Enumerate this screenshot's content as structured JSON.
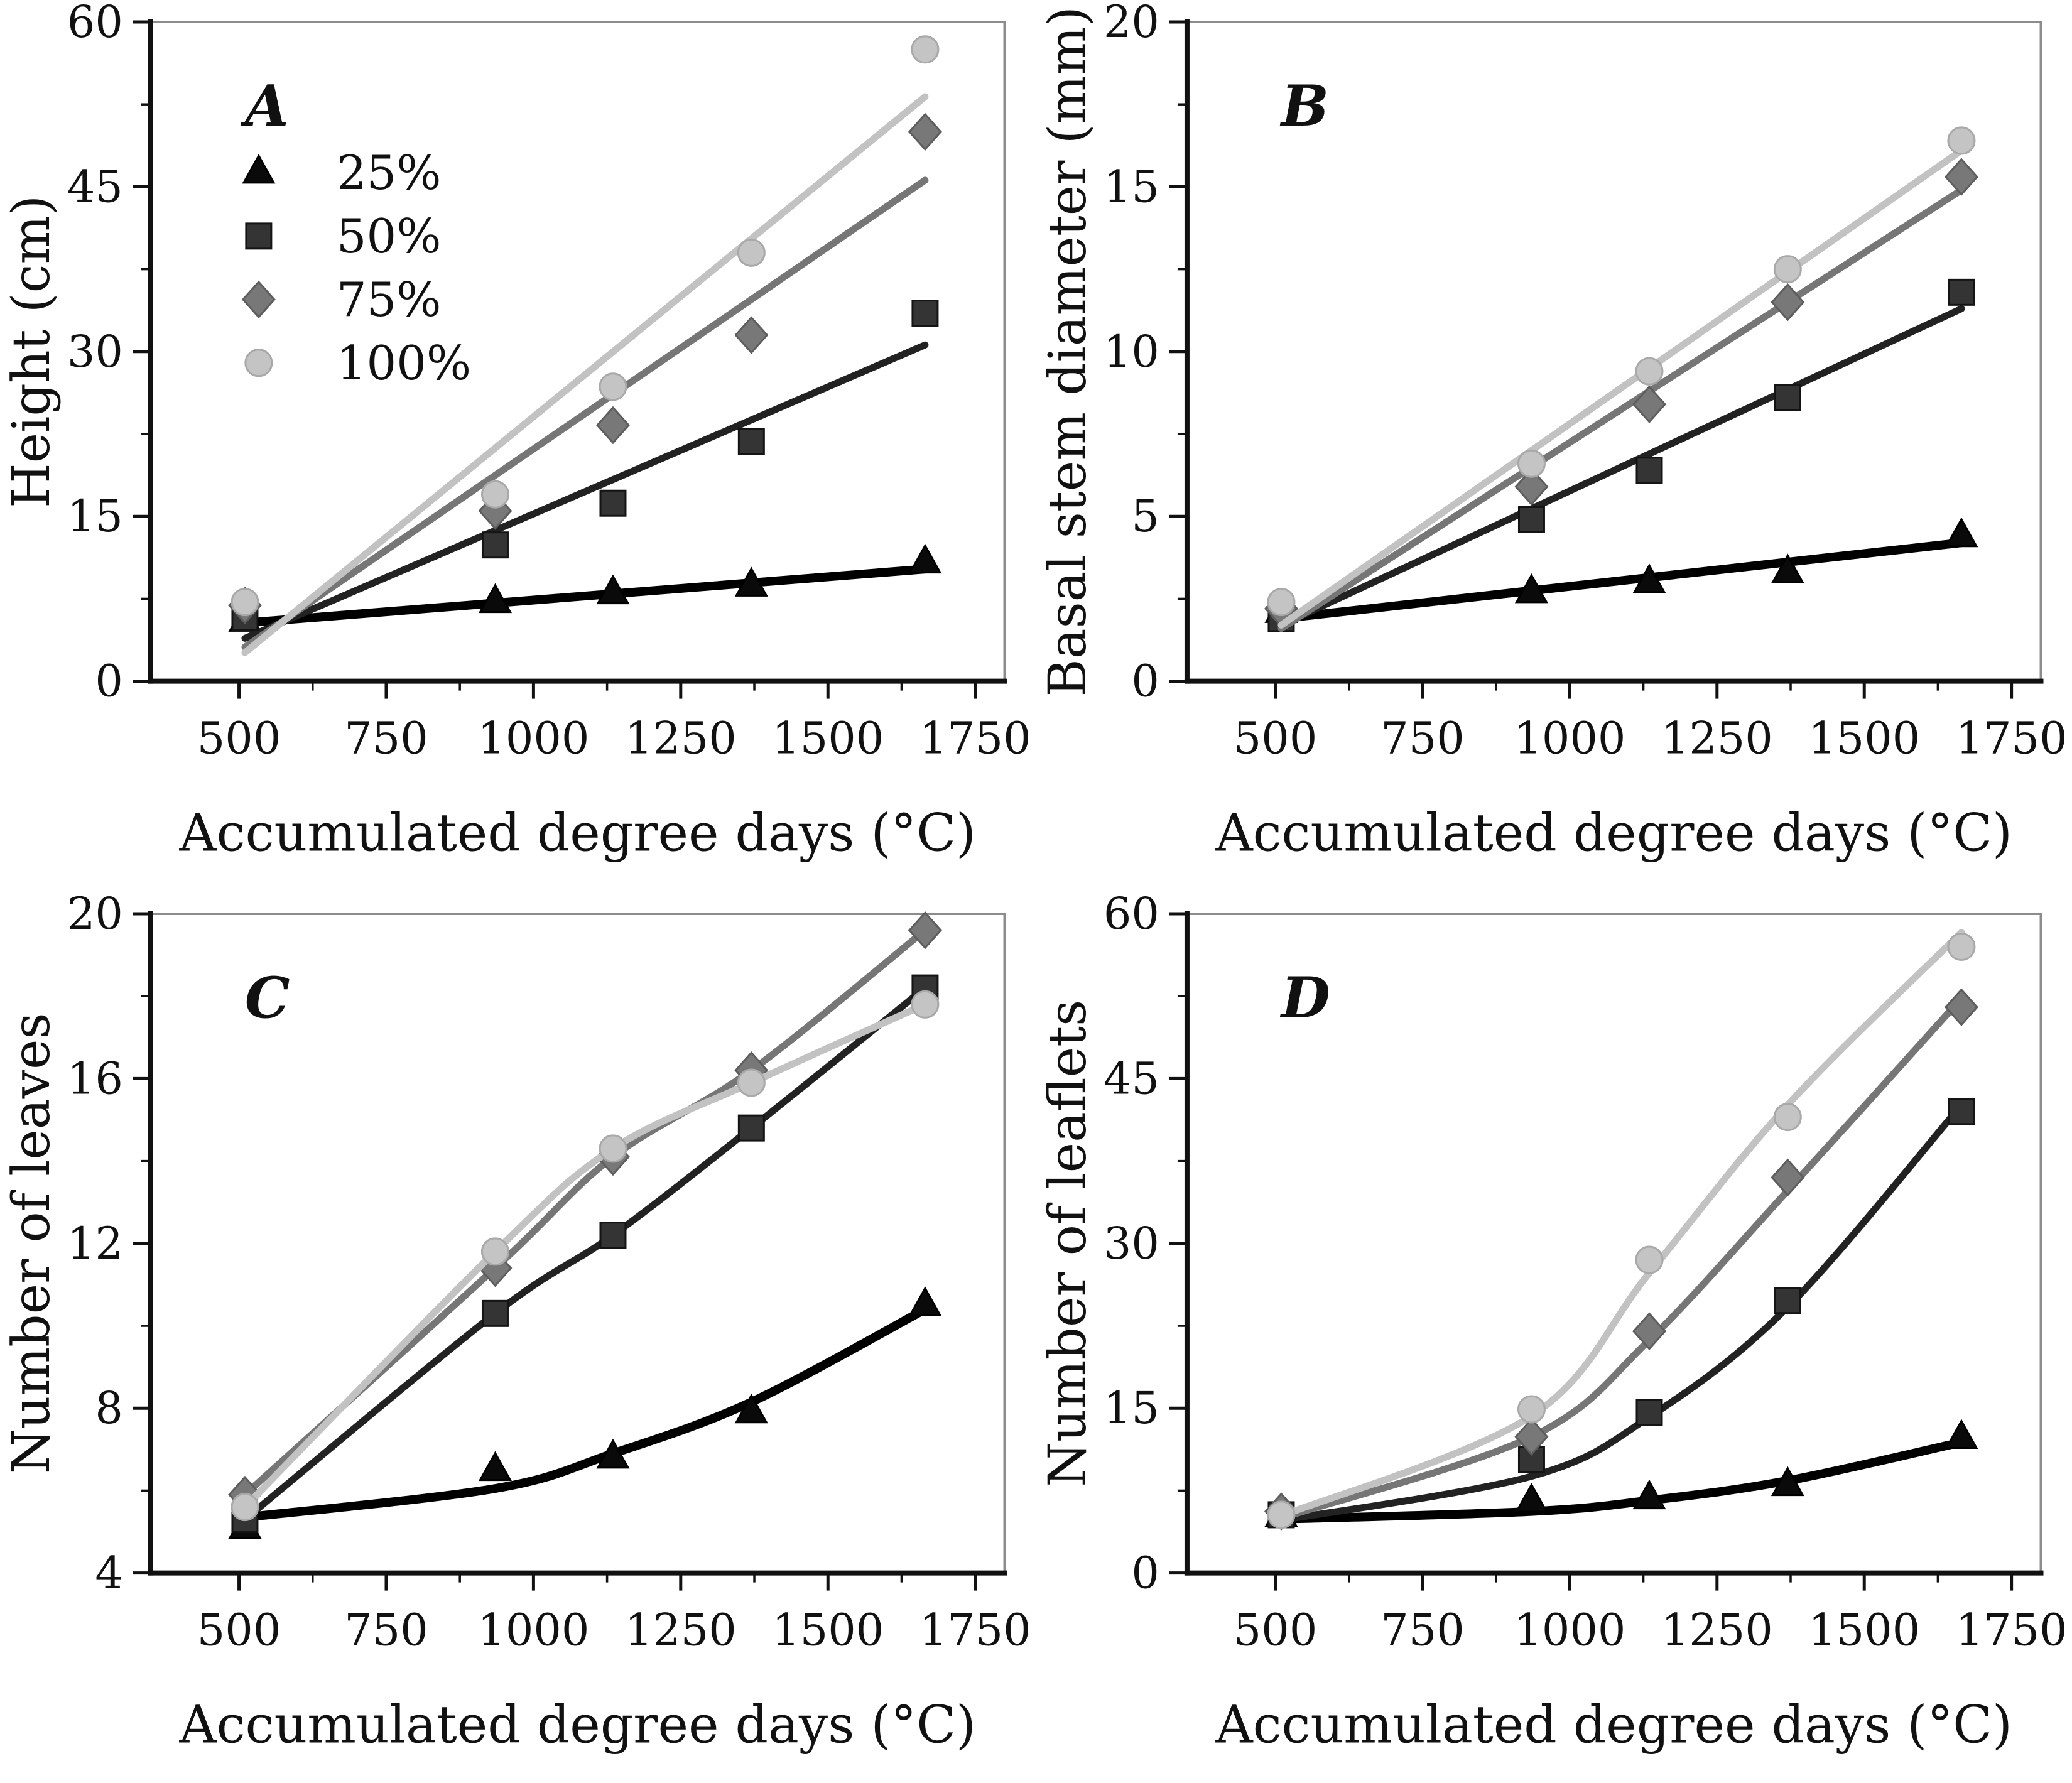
{
  "figure": {
    "description": "Four-panel plant growth figure versus accumulated degree days",
    "xlabel": "Accumulated degree days (°C)",
    "xlim": [
      350,
      1800
    ],
    "xticks": [
      500,
      750,
      1000,
      1250,
      1500,
      1750
    ],
    "x_minor_ticks": [
      625,
      875,
      1125,
      1375,
      1625
    ],
    "frame_color": "#8c8c8c",
    "axis_color": "#111111",
    "text_color": "#111111",
    "legend": {
      "items": [
        {
          "label": "25%",
          "marker": "triangle-icon",
          "color": "#000000"
        },
        {
          "label": "50%",
          "marker": "square-icon",
          "color": "#343434"
        },
        {
          "label": "75%",
          "marker": "diamond-icon",
          "color": "#767676"
        },
        {
          "label": "100%",
          "marker": "circle-icon",
          "color": "#c2c2c2"
        }
      ],
      "location": "upper-left of panel A"
    }
  },
  "chart_data": [
    {
      "type": "scatter",
      "panel_letter": "A",
      "ylabel": "Height (cm)",
      "xlabel": "Accumulated degree days (°C)",
      "ylim": [
        0,
        60
      ],
      "yticks": [
        0,
        15,
        30,
        45,
        60
      ],
      "y_minor_ticks": [
        7.5,
        22.5,
        37.5,
        52.5
      ],
      "has_legend": true,
      "series": [
        {
          "name": "25%",
          "marker": "triangle",
          "color": "#000000",
          "fill": "#0a0a0a",
          "edge": "#000000",
          "line_width": 14,
          "x": [
            510,
            935,
            1135,
            1370,
            1665
          ],
          "y": [
            5.5,
            7.2,
            8.0,
            8.7,
            10.8
          ],
          "fit": {
            "kind": "line",
            "points": [
              [
                510,
                5.3
              ],
              [
                1665,
                10.2
              ]
            ]
          }
        },
        {
          "name": "50%",
          "marker": "square",
          "color": "#222222",
          "fill": "#343434",
          "edge": "#141414",
          "line_width": 11,
          "x": [
            510,
            935,
            1135,
            1370,
            1665
          ],
          "y": [
            5.8,
            12.4,
            16.2,
            21.8,
            33.5
          ],
          "fit": {
            "kind": "line",
            "points": [
              [
                510,
                3.9
              ],
              [
                1665,
                30.6
              ]
            ]
          }
        },
        {
          "name": "75%",
          "marker": "diamond",
          "color": "#767676",
          "fill": "#787878",
          "edge": "#5d5d5d",
          "line_width": 11,
          "x": [
            510,
            935,
            1135,
            1370,
            1665
          ],
          "y": [
            6.9,
            15.5,
            23.3,
            31.5,
            50.0
          ],
          "fit": {
            "kind": "line",
            "points": [
              [
                510,
                3.1
              ],
              [
                1665,
                45.6
              ]
            ]
          }
        },
        {
          "name": "100%",
          "marker": "circle",
          "color": "#c2c2c2",
          "fill": "#c4c4c4",
          "edge": "#a9a9a9",
          "line_width": 11,
          "x": [
            510,
            935,
            1135,
            1370,
            1665
          ],
          "y": [
            7.2,
            17.0,
            26.8,
            39.0,
            57.5
          ],
          "fit": {
            "kind": "line",
            "points": [
              [
                510,
                2.6
              ],
              [
                1665,
                53.2
              ]
            ]
          }
        }
      ]
    },
    {
      "type": "scatter",
      "panel_letter": "B",
      "ylabel": "Basal stem diameter (mm)",
      "xlabel": "Accumulated degree days (°C)",
      "ylim": [
        0,
        20
      ],
      "yticks": [
        0,
        5,
        10,
        15,
        20
      ],
      "y_minor_ticks": [
        2.5,
        7.5,
        12.5,
        17.5
      ],
      "has_legend": false,
      "series": [
        {
          "name": "25%",
          "marker": "triangle",
          "color": "#000000",
          "fill": "#0a0a0a",
          "edge": "#000000",
          "line_width": 14,
          "x": [
            510,
            935,
            1135,
            1370,
            1665
          ],
          "y": [
            2.1,
            2.7,
            3.0,
            3.3,
            4.4
          ],
          "fit": {
            "kind": "line",
            "points": [
              [
                510,
                1.9
              ],
              [
                1665,
                4.2
              ]
            ]
          }
        },
        {
          "name": "50%",
          "marker": "square",
          "color": "#222222",
          "fill": "#343434",
          "edge": "#141414",
          "line_width": 11,
          "x": [
            510,
            935,
            1135,
            1370,
            1665
          ],
          "y": [
            1.9,
            4.9,
            6.4,
            8.6,
            11.8
          ],
          "fit": {
            "kind": "line",
            "points": [
              [
                510,
                1.7
              ],
              [
                1665,
                11.3
              ]
            ]
          }
        },
        {
          "name": "75%",
          "marker": "diamond",
          "color": "#767676",
          "fill": "#787878",
          "edge": "#5d5d5d",
          "line_width": 11,
          "x": [
            510,
            935,
            1135,
            1370,
            1665
          ],
          "y": [
            2.2,
            5.9,
            8.4,
            11.5,
            15.3
          ],
          "fit": {
            "kind": "line",
            "points": [
              [
                510,
                1.6
              ],
              [
                1665,
                14.9
              ]
            ]
          }
        },
        {
          "name": "100%",
          "marker": "circle",
          "color": "#c2c2c2",
          "fill": "#c4c4c4",
          "edge": "#a9a9a9",
          "line_width": 11,
          "x": [
            510,
            935,
            1135,
            1370,
            1665
          ],
          "y": [
            2.4,
            6.6,
            9.4,
            12.5,
            16.4
          ],
          "fit": {
            "kind": "line",
            "points": [
              [
                510,
                1.7
              ],
              [
                1665,
                16.1
              ]
            ]
          }
        }
      ]
    },
    {
      "type": "scatter",
      "panel_letter": "C",
      "ylabel": "Number of leaves",
      "xlabel": "Accumulated degree days (°C)",
      "ylim": [
        4,
        20
      ],
      "yticks": [
        4,
        8,
        12,
        16,
        20
      ],
      "y_minor_ticks": [
        6,
        10,
        14,
        18
      ],
      "has_legend": false,
      "series": [
        {
          "name": "25%",
          "marker": "triangle",
          "color": "#000000",
          "fill": "#0a0a0a",
          "edge": "#000000",
          "line_width": 14,
          "x": [
            510,
            935,
            1135,
            1370,
            1665
          ],
          "y": [
            5.1,
            6.5,
            6.8,
            7.9,
            10.5
          ],
          "fit": {
            "kind": "curve",
            "points": [
              [
                510,
                5.35
              ],
              [
                935,
                6.05
              ],
              [
                1135,
                6.9
              ],
              [
                1370,
                8.15
              ],
              [
                1665,
                10.4
              ]
            ]
          }
        },
        {
          "name": "50%",
          "marker": "square",
          "color": "#222222",
          "fill": "#343434",
          "edge": "#141414",
          "line_width": 11,
          "x": [
            510,
            935,
            1135,
            1370,
            1665
          ],
          "y": [
            5.3,
            10.3,
            12.2,
            14.8,
            18.2
          ],
          "fit": {
            "kind": "curve",
            "points": [
              [
                510,
                5.3
              ],
              [
                935,
                10.3
              ],
              [
                1135,
                12.2
              ],
              [
                1370,
                14.8
              ],
              [
                1665,
                18.2
              ]
            ]
          }
        },
        {
          "name": "75%",
          "marker": "diamond",
          "color": "#767676",
          "fill": "#787878",
          "edge": "#5d5d5d",
          "line_width": 11,
          "x": [
            510,
            935,
            1135,
            1370,
            1665
          ],
          "y": [
            5.9,
            11.4,
            14.1,
            16.2,
            19.6
          ],
          "fit": {
            "kind": "curve",
            "points": [
              [
                510,
                5.9
              ],
              [
                935,
                11.4
              ],
              [
                1135,
                14.1
              ],
              [
                1370,
                16.2
              ],
              [
                1665,
                19.6
              ]
            ]
          }
        },
        {
          "name": "100%",
          "marker": "circle",
          "color": "#c2c2c2",
          "fill": "#c4c4c4",
          "edge": "#a9a9a9",
          "line_width": 11,
          "x": [
            510,
            935,
            1135,
            1370,
            1665
          ],
          "y": [
            5.6,
            11.8,
            14.3,
            15.9,
            17.8
          ],
          "fit": {
            "kind": "curve",
            "points": [
              [
                510,
                5.6
              ],
              [
                935,
                11.8
              ],
              [
                1135,
                14.3
              ],
              [
                1370,
                15.9
              ],
              [
                1665,
                17.8
              ]
            ]
          }
        }
      ]
    },
    {
      "type": "scatter",
      "panel_letter": "D",
      "ylabel": "Number of leaflets",
      "xlabel": "Accumulated degree days (°C)",
      "ylim": [
        0,
        60
      ],
      "yticks": [
        0,
        15,
        30,
        45,
        60
      ],
      "y_minor_ticks": [
        7.5,
        22.5,
        37.5,
        52.5
      ],
      "has_legend": false,
      "series": [
        {
          "name": "25%",
          "marker": "triangle",
          "color": "#000000",
          "fill": "#0a0a0a",
          "edge": "#000000",
          "line_width": 14,
          "x": [
            510,
            935,
            1135,
            1370,
            1665
          ],
          "y": [
            5.2,
            6.5,
            6.8,
            8.0,
            12.3
          ],
          "fit": {
            "kind": "curve",
            "points": [
              [
                510,
                4.9
              ],
              [
                935,
                5.6
              ],
              [
                1135,
                6.6
              ],
              [
                1370,
                8.4
              ],
              [
                1665,
                11.9
              ]
            ]
          }
        },
        {
          "name": "50%",
          "marker": "square",
          "color": "#222222",
          "fill": "#343434",
          "edge": "#141414",
          "line_width": 11,
          "x": [
            510,
            935,
            1135,
            1370,
            1665
          ],
          "y": [
            5.3,
            10.3,
            14.6,
            24.8,
            42.0
          ],
          "fit": {
            "kind": "curve",
            "points": [
              [
                510,
                4.8
              ],
              [
                935,
                8.8
              ],
              [
                1135,
                14.2
              ],
              [
                1370,
                24.2
              ],
              [
                1665,
                42.6
              ]
            ]
          }
        },
        {
          "name": "75%",
          "marker": "diamond",
          "color": "#767676",
          "fill": "#787878",
          "edge": "#5d5d5d",
          "line_width": 11,
          "x": [
            510,
            935,
            1135,
            1370,
            1665
          ],
          "y": [
            5.6,
            12.4,
            22.0,
            36.0,
            51.5
          ],
          "fit": {
            "kind": "curve",
            "points": [
              [
                510,
                5.0
              ],
              [
                935,
                12.4
              ],
              [
                1135,
                21.2
              ],
              [
                1370,
                34.8
              ],
              [
                1665,
                52.3
              ]
            ]
          }
        },
        {
          "name": "100%",
          "marker": "circle",
          "color": "#c2c2c2",
          "fill": "#c4c4c4",
          "edge": "#a9a9a9",
          "line_width": 11,
          "x": [
            510,
            935,
            1135,
            1370,
            1665
          ],
          "y": [
            5.3,
            14.9,
            28.5,
            41.5,
            57.0
          ],
          "fit": {
            "kind": "curve",
            "points": [
              [
                510,
                5.2
              ],
              [
                935,
                14.3
              ],
              [
                1135,
                27.3
              ],
              [
                1370,
                42.6
              ],
              [
                1665,
                58.3
              ]
            ]
          }
        }
      ]
    }
  ]
}
